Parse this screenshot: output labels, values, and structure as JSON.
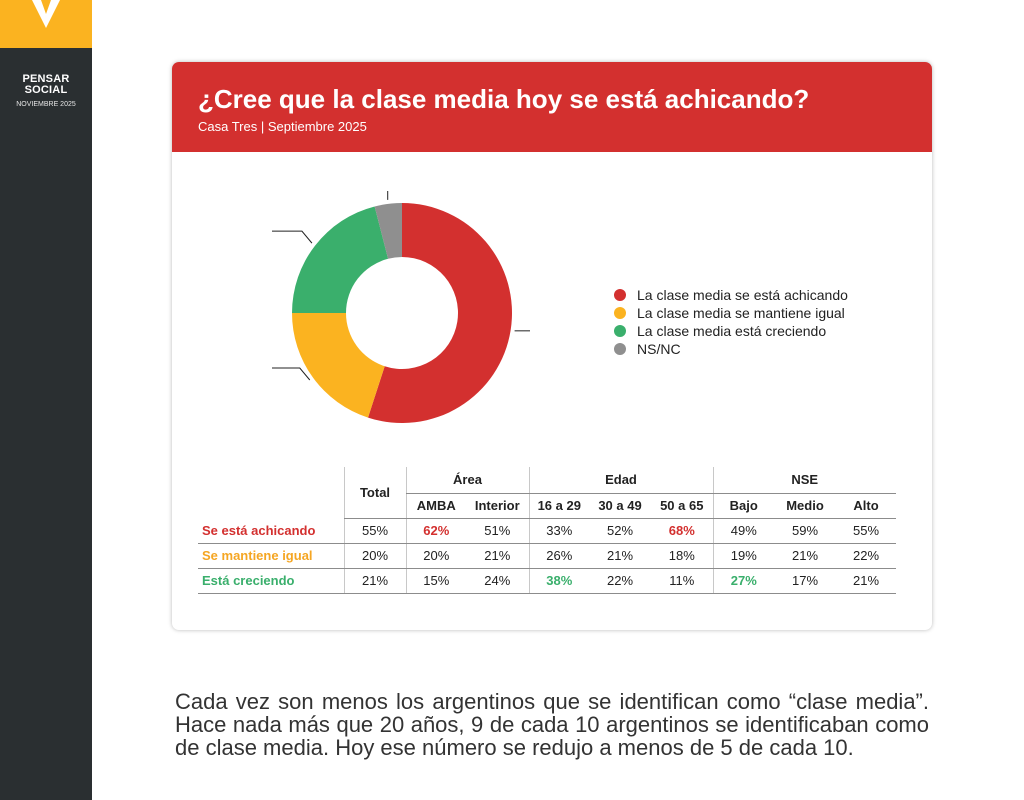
{
  "brand": {
    "name_lines": [
      "PENSAR",
      "SOCIAL"
    ],
    "date": "NOVIEMBRE 2025",
    "accent": "#fbb320",
    "sidebar_bg": "#2a2f31"
  },
  "card": {
    "title": "¿Cree que la clase media hoy se está achicando?",
    "subtitle": "Casa Tres | Septiembre 2025",
    "header_color": "#d3302f"
  },
  "chart_data": {
    "type": "pie",
    "title": "¿Cree que la clase media hoy se está achicando?",
    "subtitle": "Casa Tres | Septiembre 2025",
    "donut": true,
    "legend_position": "right",
    "categories": [
      "La clase media se está achicando",
      "La clase media se mantiene igual",
      "La clase media está creciendo",
      "NS/NC"
    ],
    "values": [
      55,
      20,
      21,
      4
    ],
    "colors": [
      "#d3302f",
      "#fbb320",
      "#3aaf6c",
      "#8f8f8f"
    ]
  },
  "table": {
    "total_header": "Total",
    "groups": [
      {
        "label": "Área",
        "columns": [
          "AMBA",
          "Interior"
        ]
      },
      {
        "label": "Edad",
        "columns": [
          "16 a 29",
          "30 a 49",
          "50 a 65"
        ]
      },
      {
        "label": "NSE",
        "columns": [
          "Bajo",
          "Medio",
          "Alto"
        ]
      }
    ],
    "rows": [
      {
        "label": "Se está achicando",
        "color": "#d3302f",
        "values": [
          "55%",
          "62%",
          "51%",
          "33%",
          "52%",
          "68%",
          "49%",
          "59%",
          "55%"
        ],
        "highlight": [
          1,
          5
        ]
      },
      {
        "label": "Se mantiene igual",
        "color": "#f5a623",
        "values": [
          "20%",
          "20%",
          "21%",
          "26%",
          "21%",
          "18%",
          "19%",
          "21%",
          "22%"
        ],
        "highlight": []
      },
      {
        "label": "Está creciendo",
        "color": "#3aaf6c",
        "values": [
          "21%",
          "15%",
          "24%",
          "38%",
          "22%",
          "11%",
          "27%",
          "17%",
          "21%"
        ],
        "highlight": [
          3,
          6
        ]
      }
    ]
  },
  "paragraph": "Cada vez son menos los argentinos que se identifican como “clase media”. Hace nada más que 20 años, 9 de cada 10 argentinos se identificaban como de clase media. Hoy ese número se redujo a menos de 5 de cada 10."
}
